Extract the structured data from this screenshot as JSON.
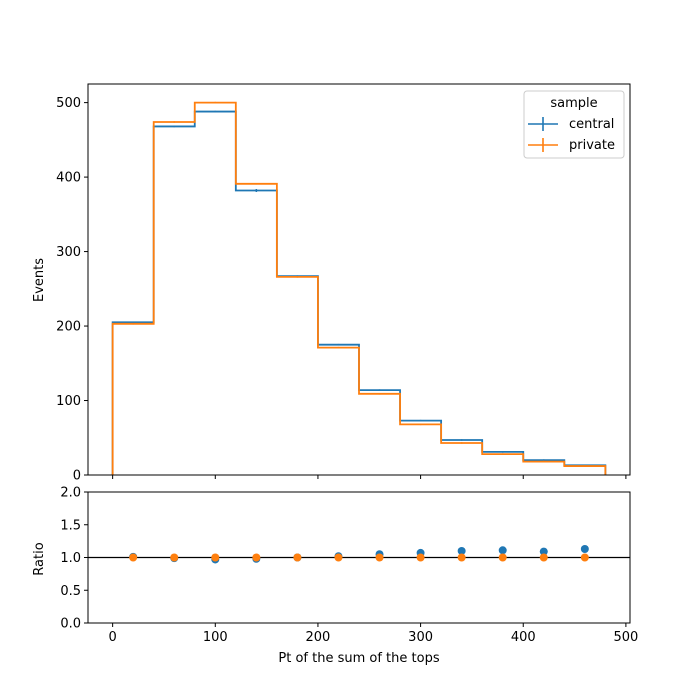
{
  "chart_data": [
    {
      "type": "step",
      "ylabel": "Events",
      "xlabel": "",
      "xlim": [
        -24,
        504
      ],
      "ylim": [
        0,
        525
      ],
      "x_ticks": [
        0,
        100,
        200,
        300,
        400,
        500
      ],
      "y_ticks": [
        0,
        100,
        200,
        300,
        400,
        500
      ],
      "y_tick_labels": [
        "0",
        "100",
        "200",
        "300",
        "400",
        "500"
      ],
      "bin_edges": [
        0,
        40,
        80,
        120,
        160,
        200,
        240,
        280,
        320,
        360,
        400,
        440,
        480
      ],
      "series": [
        {
          "name": "central",
          "color": "#1f77b4",
          "values": [
            205,
            468,
            488,
            382,
            267,
            175,
            114,
            73,
            47,
            31,
            20,
            13
          ],
          "errors": [
            1.0,
            1.0,
            1.0,
            2.0,
            1.0,
            1.0,
            1.0,
            1.0,
            1.0,
            1.0,
            1.0,
            1.0
          ]
        },
        {
          "name": "private",
          "color": "#ff7f0e",
          "values": [
            203,
            474,
            500,
            391,
            266,
            171,
            109,
            68,
            43,
            28,
            18,
            12
          ],
          "errors": [
            1.0,
            1.0,
            1.0,
            1.0,
            1.0,
            1.0,
            1.0,
            1.0,
            1.0,
            1.0,
            1.0,
            1.0
          ]
        }
      ],
      "legend": {
        "title": "sample",
        "placement": "top-right",
        "entries": [
          "central",
          "private"
        ]
      }
    },
    {
      "type": "scatter",
      "ylabel": "Ratio",
      "xlabel": "Pt of the sum of the tops",
      "xlim": [
        -24,
        504
      ],
      "ylim": [
        0.0,
        2.0
      ],
      "x_ticks": [
        0,
        100,
        200,
        300,
        400,
        500
      ],
      "x_tick_labels": [
        "0",
        "100",
        "200",
        "300",
        "400",
        "500"
      ],
      "y_ticks": [
        0.0,
        0.5,
        1.0,
        1.5,
        2.0
      ],
      "y_tick_labels": [
        "0.0",
        "0.5",
        "1.0",
        "1.5",
        "2.0"
      ],
      "reference_line": 1.0,
      "x": [
        20,
        60,
        100,
        140,
        180,
        220,
        260,
        300,
        340,
        380,
        420,
        460
      ],
      "series": [
        {
          "name": "central",
          "color": "#1f77b4",
          "values": [
            1.01,
            0.99,
            0.97,
            0.98,
            1.0,
            1.02,
            1.05,
            1.07,
            1.1,
            1.11,
            1.09,
            1.13
          ]
        },
        {
          "name": "private",
          "color": "#ff7f0e",
          "values": [
            1.0,
            1.0,
            1.0,
            1.0,
            1.0,
            1.0,
            1.0,
            1.0,
            1.0,
            1.0,
            1.0,
            1.0
          ]
        }
      ]
    }
  ]
}
